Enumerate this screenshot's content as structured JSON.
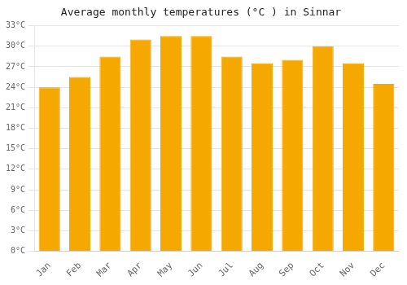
{
  "chart_data": {
    "type": "bar",
    "title": "Average monthly temperatures (°C ) in Sinnar",
    "categories": [
      "Jan",
      "Feb",
      "Mar",
      "Apr",
      "May",
      "Jun",
      "Jul",
      "Aug",
      "Sep",
      "Oct",
      "Nov",
      "Dec"
    ],
    "values": [
      24,
      25.5,
      28.5,
      31,
      31.5,
      31.5,
      28.5,
      27.5,
      28,
      30,
      27.5,
      24.5
    ],
    "color": "#F5A800",
    "ylim": [
      0,
      33
    ],
    "yticks": [
      {
        "value": 0,
        "label": "0°C"
      },
      {
        "value": 3,
        "label": "3°C"
      },
      {
        "value": 6,
        "label": "6°C"
      },
      {
        "value": 9,
        "label": "9°C"
      },
      {
        "value": 12,
        "label": "12°C"
      },
      {
        "value": 15,
        "label": "15°C"
      },
      {
        "value": 18,
        "label": "18°C"
      },
      {
        "value": 21,
        "label": "21°C"
      },
      {
        "value": 24,
        "label": "24°C"
      },
      {
        "value": 27,
        "label": "27°C"
      },
      {
        "value": 30,
        "label": "30°C"
      },
      {
        "value": 33,
        "label": "33°C"
      }
    ],
    "grid": true
  }
}
